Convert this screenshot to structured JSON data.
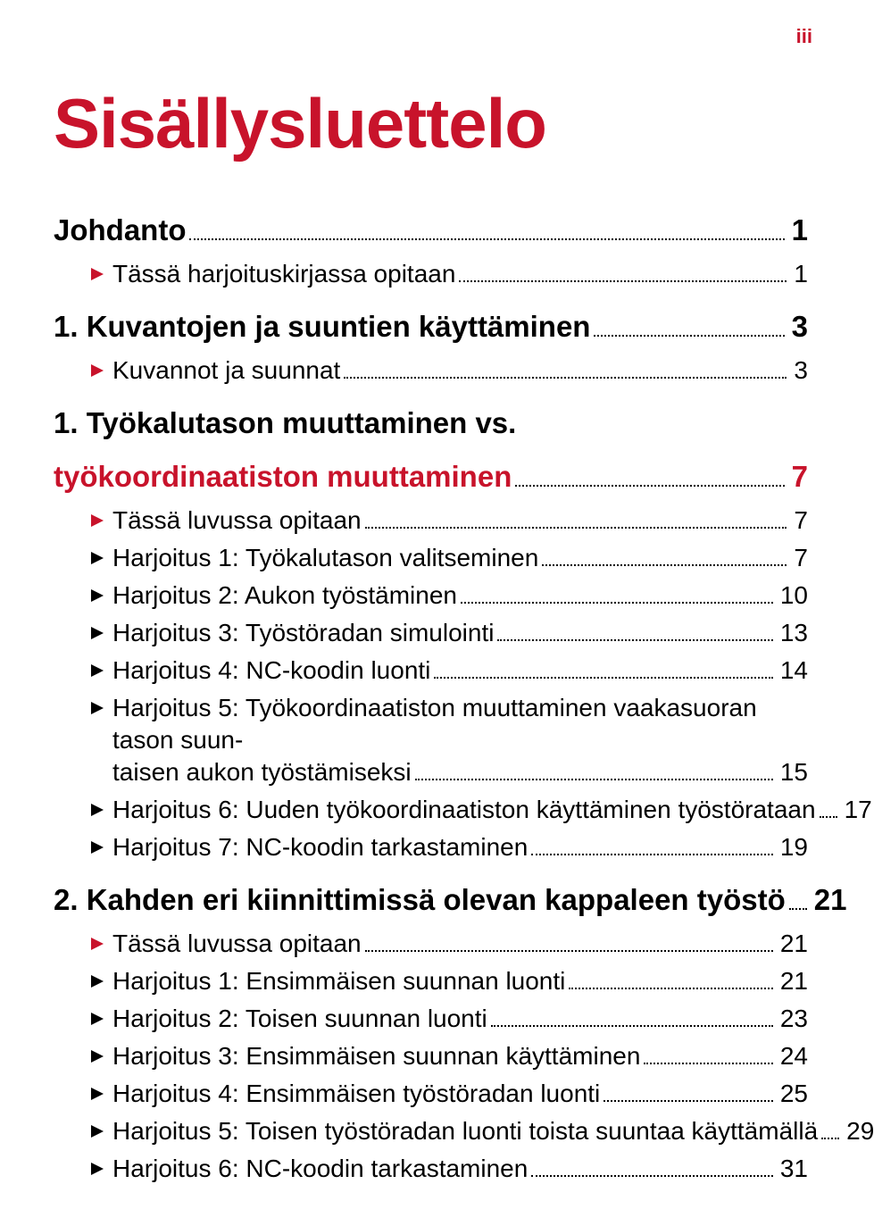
{
  "page_number_roman": "iii",
  "colors": {
    "accent": "#c8132b",
    "text": "#000000",
    "bg": "#ffffff"
  },
  "title": "Sisällysluettelo",
  "toc": [
    {
      "type": "h1",
      "label": "Johdanto",
      "page": "1",
      "red": false
    },
    {
      "type": "item",
      "marker": "red",
      "label": "Tässä harjoituskirjassa opitaan",
      "page": "1"
    },
    {
      "type": "h1",
      "label": "1. Kuvantojen ja suuntien käyttäminen",
      "page": "3",
      "red": false
    },
    {
      "type": "item",
      "marker": "red",
      "label": "Kuvannot ja suunnat",
      "page": "3"
    },
    {
      "type": "h1",
      "label": "1. Työkalutason muuttaminen vs.",
      "red": false,
      "no_page": true
    },
    {
      "type": "h1",
      "label": "työkoordinaatiston muuttaminen",
      "page": "7",
      "red": true
    },
    {
      "type": "item",
      "marker": "red",
      "label": "Tässä luvussa opitaan",
      "page": "7"
    },
    {
      "type": "item",
      "marker": "black",
      "label": "Harjoitus 1: Työkalutason valitseminen",
      "page": "7"
    },
    {
      "type": "item",
      "marker": "black",
      "label": "Harjoitus 2: Aukon työstäminen",
      "page": "10"
    },
    {
      "type": "item",
      "marker": "black",
      "label": "Harjoitus 3: Työstöradan simulointi",
      "page": "13"
    },
    {
      "type": "item",
      "marker": "black",
      "label": "Harjoitus 4: NC-koodin luonti",
      "page": "14"
    },
    {
      "type": "item",
      "marker": "black",
      "label_line1": "Harjoitus 5: Työkoordinaatiston muuttaminen vaakasuoran tason suun-",
      "label_line2": "taisen aukon työstämiseksi",
      "page": "15",
      "multiline": true
    },
    {
      "type": "item",
      "marker": "black",
      "label": "Harjoitus 6: Uuden työkoordinaatiston käyttäminen työstörataan",
      "page": "17"
    },
    {
      "type": "item",
      "marker": "black",
      "label": "Harjoitus 7: NC-koodin tarkastaminen",
      "page": "19"
    },
    {
      "type": "h1",
      "label": "2. Kahden eri kiinnittimissä olevan kappaleen työstö",
      "page": "21",
      "red": false
    },
    {
      "type": "item",
      "marker": "red",
      "label": "Tässä luvussa opitaan",
      "page": "21"
    },
    {
      "type": "item",
      "marker": "black",
      "label": "Harjoitus 1: Ensimmäisen suunnan luonti",
      "page": "21"
    },
    {
      "type": "item",
      "marker": "black",
      "label": "Harjoitus 2: Toisen suunnan luonti",
      "page": "23"
    },
    {
      "type": "item",
      "marker": "black",
      "label": "Harjoitus 3: Ensimmäisen suunnan käyttäminen",
      "page": "24"
    },
    {
      "type": "item",
      "marker": "black",
      "label": "Harjoitus 4: Ensimmäisen työstöradan luonti",
      "page": "25"
    },
    {
      "type": "item",
      "marker": "black",
      "label": "Harjoitus 5: Toisen työstöradan luonti toista suuntaa käyttämällä",
      "page": "29"
    },
    {
      "type": "item",
      "marker": "black",
      "label": "Harjoitus 6: NC-koodin tarkastaminen",
      "page": "31"
    }
  ]
}
